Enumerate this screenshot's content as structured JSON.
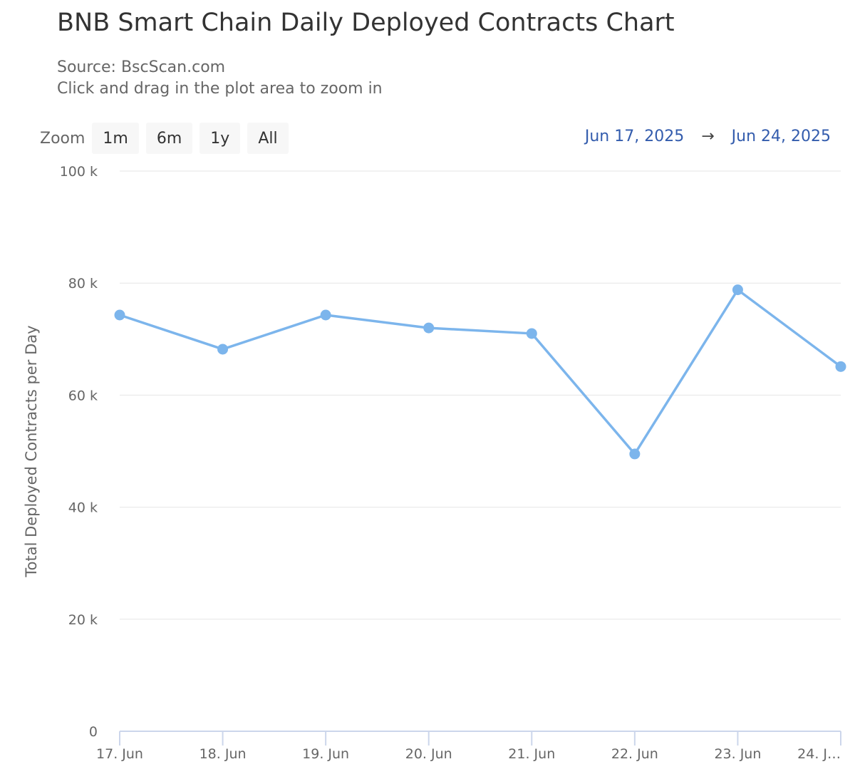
{
  "chart_data": {
    "type": "line",
    "title": "BNB Smart Chain Daily Deployed Contracts Chart",
    "subtitle": "Source: BscScan.com",
    "hint": "Click and drag in the plot area to zoom in",
    "xlabel": "",
    "ylabel": "Total Deployed Contracts per Day",
    "categories": [
      "17. Jun",
      "18. Jun",
      "19. Jun",
      "20. Jun",
      "21. Jun",
      "22. Jun",
      "23. Jun",
      "24. J…"
    ],
    "series": [
      {
        "name": "Total Deployed Contracts per Day",
        "color": "#7cb5ec",
        "values": [
          74300,
          68200,
          74300,
          72000,
          71000,
          49500,
          78800,
          65100
        ]
      }
    ],
    "ylim": [
      0,
      100000
    ],
    "yticks": [
      0,
      20000,
      40000,
      60000,
      80000,
      100000
    ],
    "ytick_labels": [
      "0",
      "20 k",
      "40 k",
      "60 k",
      "80 k",
      "100 k"
    ],
    "grid": true
  },
  "zoom": {
    "label": "Zoom",
    "buttons": [
      "1m",
      "6m",
      "1y",
      "All"
    ]
  },
  "range": {
    "from": "Jun 17, 2025",
    "arrow": "→",
    "to": "Jun 24, 2025"
  },
  "colors": {
    "line": "#7cb5ec",
    "grid": "#e6e6e6",
    "axis": "#ccd6eb",
    "range_link": "#335cad"
  }
}
